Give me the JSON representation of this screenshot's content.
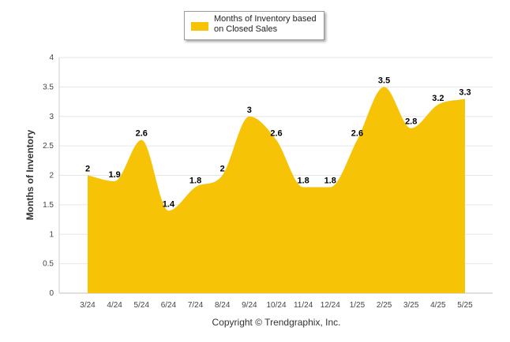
{
  "chart_data": {
    "type": "area",
    "categories": [
      "3/24",
      "4/24",
      "5/24",
      "6/24",
      "7/24",
      "8/24",
      "9/24",
      "10/24",
      "11/24",
      "12/24",
      "1/25",
      "2/25",
      "3/25",
      "4/25",
      "5/25"
    ],
    "series": [
      {
        "name": "Months of Inventory based on Closed Sales",
        "values": [
          2,
          1.9,
          2.6,
          1.4,
          1.8,
          2,
          3,
          2.6,
          1.8,
          1.8,
          2.6,
          3.5,
          2.8,
          3.2,
          3.3
        ]
      }
    ],
    "ylabel": "Months of Inventory",
    "xlabel": "",
    "ylim": [
      0,
      4
    ],
    "yticks": [
      "0",
      "0.5",
      "1",
      "1.5",
      "2",
      "2.5",
      "3",
      "3.5",
      "4"
    ],
    "grid": true,
    "legend_position": "top-center",
    "color": "#F7C307"
  },
  "footer": {
    "copyright": "Copyright © Trendgraphix, Inc."
  }
}
